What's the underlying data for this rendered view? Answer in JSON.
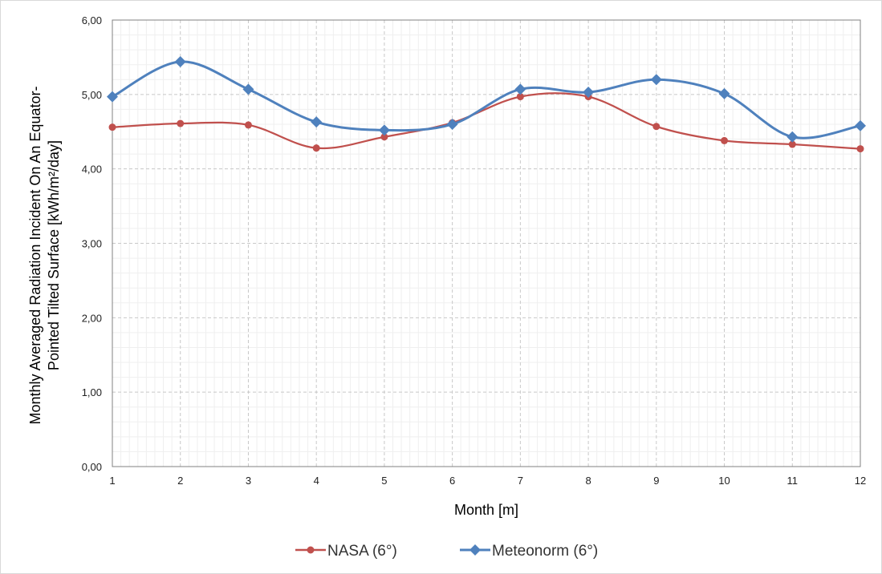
{
  "chart_data": {
    "type": "line",
    "title": "",
    "xlabel": "Month [m]",
    "ylabel_line1": "Monthly Averaged Radiation Incident  On An Equator-",
    "ylabel_line2": "Pointed Tilted Surface [kWh/m²/day]",
    "x": [
      1,
      2,
      3,
      4,
      5,
      6,
      7,
      8,
      9,
      10,
      11,
      12
    ],
    "x_tick_labels": [
      "1",
      "2",
      "3",
      "4",
      "5",
      "6",
      "7",
      "8",
      "9",
      "10",
      "11",
      "12"
    ],
    "ylim": [
      0,
      6
    ],
    "y_tick_labels": [
      "0,00",
      "1,00",
      "2,00",
      "3,00",
      "4,00",
      "5,00",
      "6,00"
    ],
    "grid": true,
    "legend_position": "bottom",
    "series": [
      {
        "name": "NASA (6°)",
        "color": "#c0504d",
        "marker": "circle",
        "values": [
          4.56,
          4.61,
          4.59,
          4.28,
          4.43,
          4.62,
          4.97,
          4.97,
          4.57,
          4.38,
          4.33,
          4.27
        ]
      },
      {
        "name": "Meteonorm (6°)",
        "color": "#4f81bd",
        "marker": "diamond",
        "values": [
          4.97,
          5.44,
          5.07,
          4.63,
          4.52,
          4.6,
          5.07,
          5.03,
          5.2,
          5.01,
          4.43,
          4.58
        ]
      }
    ]
  }
}
